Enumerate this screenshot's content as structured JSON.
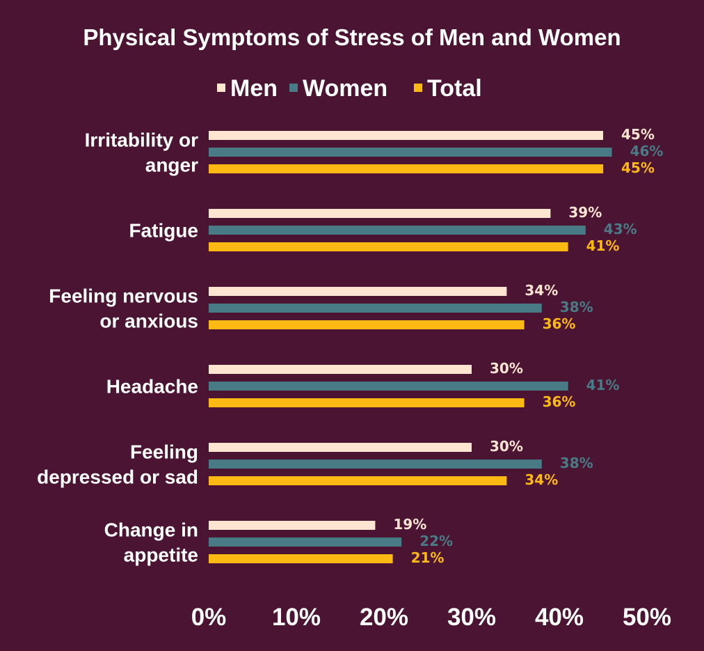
{
  "chart_data": {
    "type": "bar",
    "orientation": "horizontal",
    "title": "Physical Symptoms of Stress of Men and Women",
    "categories": [
      [
        "Irritability or",
        "anger"
      ],
      [
        "Fatigue"
      ],
      [
        "Feeling nervous",
        "or anxious"
      ],
      [
        "Headache"
      ],
      [
        "Feeling",
        "depressed or sad"
      ],
      [
        "Change in",
        "appetite"
      ]
    ],
    "series": [
      {
        "name": "Men",
        "color": "#fde5d2",
        "values": [
          45,
          39,
          34,
          30,
          30,
          19
        ]
      },
      {
        "name": "Women",
        "color": "#497b86",
        "values": [
          46,
          43,
          38,
          41,
          38,
          22
        ]
      },
      {
        "name": "Total",
        "color": "#fdb913",
        "values": [
          45,
          41,
          36,
          36,
          34,
          21
        ]
      }
    ],
    "xlim": [
      0,
      50
    ],
    "xticks": [
      0,
      10,
      20,
      30,
      40,
      50
    ],
    "tick_suffix": "%",
    "value_suffix": "%",
    "legend_position": "top",
    "grid": false,
    "background": "#4b1432"
  }
}
